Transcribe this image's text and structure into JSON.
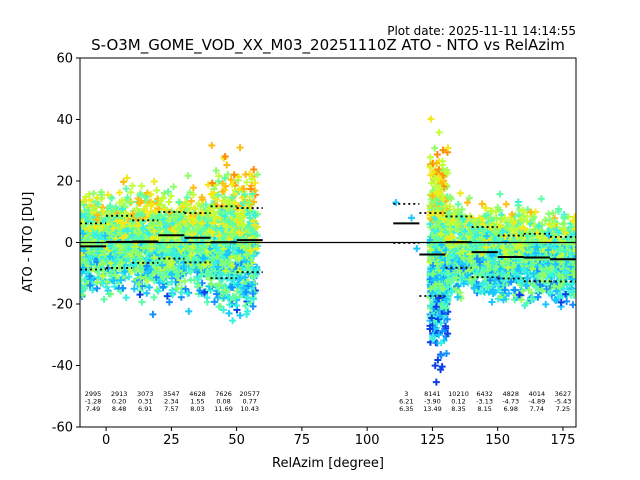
{
  "plot_date": "Plot date: 2025-11-11 14:14:55",
  "chart_data": {
    "type": "scatter",
    "title": "S-O3M_GOME_VOD_XX_M03_20251110Z ATO - NTO vs RelAzim",
    "xlabel": "RelAzim [degree]",
    "ylabel": "ATO - NTO [DU]",
    "xlim": [
      -10,
      180
    ],
    "ylim": [
      -60,
      60
    ],
    "x_ticks": [
      0,
      25,
      50,
      75,
      100,
      125,
      150,
      175
    ],
    "y_ticks": [
      -60,
      -40,
      -20,
      0,
      20,
      40,
      60
    ],
    "grid": false,
    "legend": "none",
    "zero_line": 0,
    "colors": {
      "scatter_palette": [
        "#0a3fe6",
        "#1491ff",
        "#19c6ff",
        "#38f0e0",
        "#5cffa8",
        "#8dff6a",
        "#c2ff3a",
        "#f2ea1a",
        "#ffbb10",
        "#ff8c0a"
      ],
      "line": "#000000"
    },
    "stats": [
      {
        "x": -5,
        "count": "2995",
        "mean": "-1.28",
        "std": "7.49"
      },
      {
        "x": 5,
        "count": "2913",
        "mean": "0.20",
        "std": "8.48"
      },
      {
        "x": 15,
        "count": "3073",
        "mean": "0.31",
        "std": "6.91"
      },
      {
        "x": 25,
        "count": "3547",
        "mean": "2.34",
        "std": "7.57"
      },
      {
        "x": 35,
        "count": "4628",
        "mean": "1.55",
        "std": "8.03"
      },
      {
        "x": 45,
        "count": "7626",
        "mean": "0.08",
        "std": "11.69"
      },
      {
        "x": 55,
        "count": "20577",
        "mean": "0.77",
        "std": "10.43"
      },
      {
        "x": 115,
        "count": "3",
        "mean": "6.21",
        "std": "6.35"
      },
      {
        "x": 125,
        "count": "8141",
        "mean": "-3.90",
        "std": "13.49"
      },
      {
        "x": 135,
        "count": "10210",
        "mean": "0.12",
        "std": "8.35"
      },
      {
        "x": 145,
        "count": "6432",
        "mean": "-3.13",
        "std": "8.15"
      },
      {
        "x": 155,
        "count": "4828",
        "mean": "-4.73",
        "std": "6.98"
      },
      {
        "x": 165,
        "count": "4014",
        "mean": "-4.89",
        "std": "7.74"
      },
      {
        "x": 175,
        "count": "3627",
        "mean": "-5.43",
        "std": "7.25"
      }
    ]
  }
}
